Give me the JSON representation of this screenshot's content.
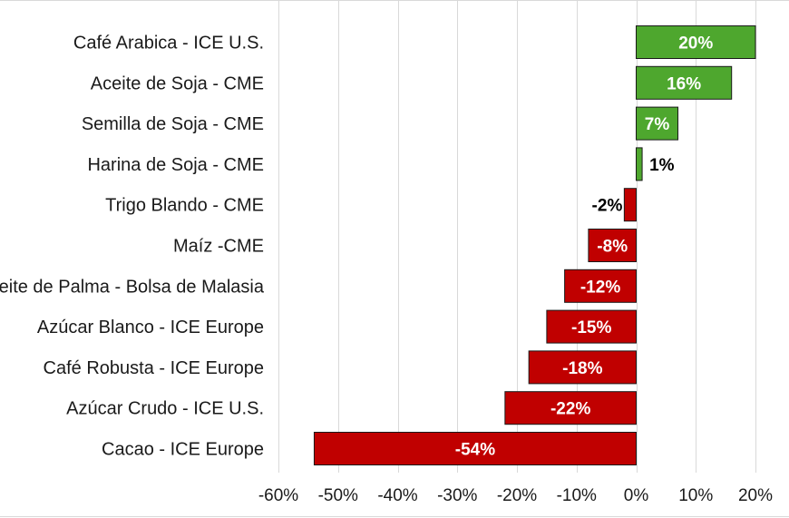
{
  "chart_data": {
    "type": "bar",
    "orientation": "horizontal",
    "categories": [
      "Café Arabica - ICE U.S.",
      "Aceite de Soja - CME",
      "Semilla de Soja - CME",
      "Harina de Soja - CME",
      "Trigo Blando - CME",
      "Maíz -CME",
      "Aceite de Palma - Bolsa de Malasia",
      "Azúcar Blanco - ICE Europe",
      "Café Robusta - ICE Europe",
      "Azúcar Crudo - ICE U.S.",
      "Cacao - ICE Europe"
    ],
    "values": [
      20,
      16,
      7,
      1,
      -2,
      -8,
      -12,
      -15,
      -18,
      -22,
      -54
    ],
    "data_labels": [
      "20%",
      "16%",
      "7%",
      "1%",
      "-2%",
      "-8%",
      "-12%",
      "-15%",
      "-18%",
      "-22%",
      "-54%"
    ],
    "xlim": [
      -60,
      20
    ],
    "x_ticks": [
      -60,
      -50,
      -40,
      -30,
      -20,
      -10,
      0,
      10,
      20
    ],
    "x_tick_labels": [
      "-60%",
      "-50%",
      "-40%",
      "-30%",
      "-20%",
      "-10%",
      "0%",
      "10%",
      "20%"
    ],
    "title": "",
    "xlabel": "",
    "ylabel": "",
    "grid": "vertical",
    "legend": "none",
    "colors": {
      "positive": "#4ea72e",
      "negative": "#c00000",
      "bar_outline": "#1a1a1a",
      "label_on_bar": "#ffffff",
      "label_outside": "#000000",
      "gridline": "#d9d9d9"
    }
  }
}
